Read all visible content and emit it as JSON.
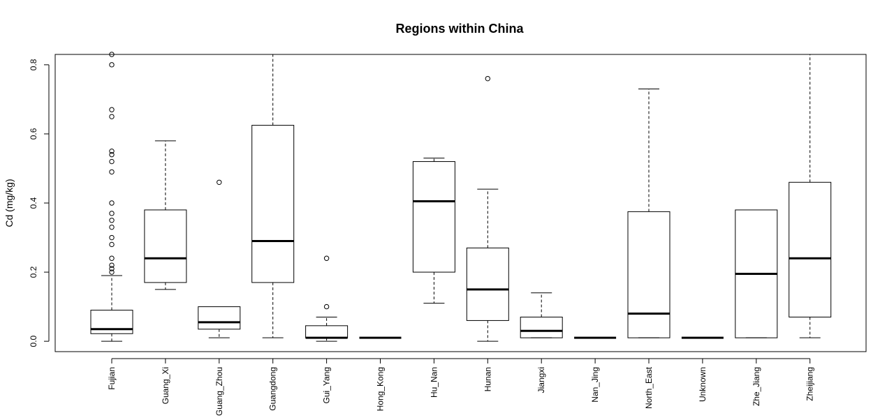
{
  "chart_data": {
    "type": "boxplot",
    "title": "Regions within China",
    "xlabel": "",
    "ylabel": "Cd (mg/kg)",
    "ylim": [
      -0.03,
      0.83
    ],
    "yticks": [
      "0.0",
      "0.2",
      "0.4",
      "0.6",
      "0.8"
    ],
    "grid": false,
    "categories": [
      "Fujian",
      "Guang_Xi",
      "Guang_Zhou",
      "Guangdong",
      "Gui_Yang",
      "Hong_Kong",
      "Hu_Nan",
      "Hunan",
      "Jiangxi",
      "Nan_Jing",
      "North_East",
      "Unknown",
      "Zhe_Jiang",
      "Zheijiang"
    ],
    "boxes": [
      {
        "whisker_low": 0.0,
        "q1": 0.022,
        "median": 0.035,
        "q3": 0.09,
        "whisker_high": 0.19,
        "outliers": [
          0.2,
          0.21,
          0.22,
          0.24,
          0.28,
          0.3,
          0.33,
          0.35,
          0.37,
          0.4,
          0.49,
          0.52,
          0.54,
          0.55,
          0.65,
          0.67,
          0.8,
          0.83
        ]
      },
      {
        "whisker_low": 0.15,
        "q1": 0.17,
        "median": 0.24,
        "q3": 0.38,
        "whisker_high": 0.58,
        "outliers": []
      },
      {
        "whisker_low": 0.01,
        "q1": 0.035,
        "median": 0.055,
        "q3": 0.1,
        "whisker_high": 0.1,
        "outliers": [
          0.46
        ]
      },
      {
        "whisker_low": 0.01,
        "q1": 0.17,
        "median": 0.29,
        "q3": 0.625,
        "whisker_high": 0.83,
        "outliers": []
      },
      {
        "whisker_low": 0.0,
        "q1": 0.01,
        "median": 0.01,
        "q3": 0.045,
        "whisker_high": 0.07,
        "outliers": [
          0.1,
          0.24
        ]
      },
      {
        "whisker_low": 0.01,
        "q1": 0.01,
        "median": 0.01,
        "q3": 0.01,
        "whisker_high": 0.01,
        "outliers": []
      },
      {
        "whisker_low": 0.11,
        "q1": 0.2,
        "median": 0.405,
        "q3": 0.52,
        "whisker_high": 0.53,
        "outliers": []
      },
      {
        "whisker_low": 0.0,
        "q1": 0.06,
        "median": 0.15,
        "q3": 0.27,
        "whisker_high": 0.44,
        "outliers": [
          0.76
        ]
      },
      {
        "whisker_low": 0.01,
        "q1": 0.01,
        "median": 0.03,
        "q3": 0.07,
        "whisker_high": 0.14,
        "outliers": []
      },
      {
        "whisker_low": 0.01,
        "q1": 0.01,
        "median": 0.01,
        "q3": 0.01,
        "whisker_high": 0.01,
        "outliers": []
      },
      {
        "whisker_low": 0.01,
        "q1": 0.01,
        "median": 0.08,
        "q3": 0.375,
        "whisker_high": 0.73,
        "outliers": []
      },
      {
        "whisker_low": 0.01,
        "q1": 0.01,
        "median": 0.01,
        "q3": 0.01,
        "whisker_high": 0.01,
        "outliers": []
      },
      {
        "whisker_low": 0.01,
        "q1": 0.01,
        "median": 0.195,
        "q3": 0.38,
        "whisker_high": 0.38,
        "outliers": []
      },
      {
        "whisker_low": 0.01,
        "q1": 0.07,
        "median": 0.24,
        "q3": 0.46,
        "whisker_high": 0.83,
        "outliers": []
      }
    ]
  }
}
